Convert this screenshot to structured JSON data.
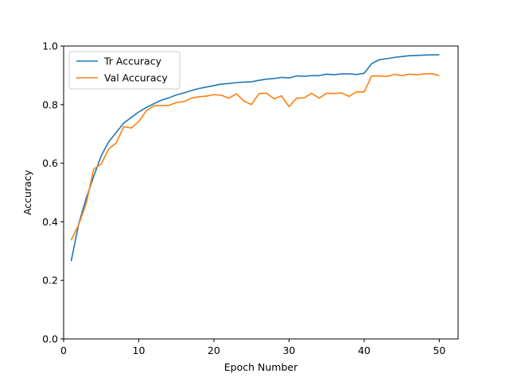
{
  "chart_data": {
    "type": "line",
    "title": "",
    "xlabel": "Epoch Number",
    "ylabel": "Accuracy",
    "xlim": [
      0,
      52.5
    ],
    "ylim": [
      0.0,
      1.0
    ],
    "x_ticks": [
      0,
      10,
      20,
      30,
      40,
      50
    ],
    "y_ticks": [
      0.0,
      0.2,
      0.4,
      0.6,
      0.8,
      1.0
    ],
    "y_tick_labels": [
      "0.0",
      "0.2",
      "0.4",
      "0.6",
      "0.8",
      "1.0"
    ],
    "grid": false,
    "legend_position": "upper-left",
    "x": [
      1,
      2,
      3,
      4,
      5,
      6,
      7,
      8,
      9,
      10,
      11,
      12,
      13,
      14,
      15,
      16,
      17,
      18,
      19,
      20,
      21,
      22,
      23,
      24,
      25,
      26,
      27,
      28,
      29,
      30,
      31,
      32,
      33,
      34,
      35,
      36,
      37,
      38,
      39,
      40,
      41,
      42,
      43,
      44,
      45,
      46,
      47,
      48,
      49,
      50
    ],
    "series": [
      {
        "name": "Tr Accuracy",
        "color": "#1f77b4",
        "values": [
          0.265,
          0.392,
          0.48,
          0.555,
          0.625,
          0.673,
          0.705,
          0.737,
          0.756,
          0.775,
          0.79,
          0.803,
          0.815,
          0.823,
          0.833,
          0.84,
          0.848,
          0.855,
          0.86,
          0.865,
          0.87,
          0.872,
          0.875,
          0.877,
          0.878,
          0.883,
          0.887,
          0.889,
          0.893,
          0.891,
          0.898,
          0.897,
          0.899,
          0.899,
          0.904,
          0.902,
          0.905,
          0.905,
          0.903,
          0.907,
          0.94,
          0.953,
          0.957,
          0.961,
          0.964,
          0.967,
          0.968,
          0.969,
          0.97,
          0.97
        ]
      },
      {
        "name": "Val Accuracy",
        "color": "#ff7f0e",
        "values": [
          0.337,
          0.39,
          0.462,
          0.58,
          0.597,
          0.649,
          0.669,
          0.725,
          0.72,
          0.742,
          0.779,
          0.796,
          0.797,
          0.797,
          0.807,
          0.81,
          0.822,
          0.827,
          0.829,
          0.834,
          0.832,
          0.822,
          0.837,
          0.812,
          0.8,
          0.838,
          0.839,
          0.82,
          0.83,
          0.793,
          0.822,
          0.823,
          0.839,
          0.822,
          0.839,
          0.838,
          0.84,
          0.828,
          0.844,
          0.843,
          0.898,
          0.898,
          0.896,
          0.903,
          0.899,
          0.904,
          0.902,
          0.905,
          0.906,
          0.899
        ]
      }
    ]
  }
}
